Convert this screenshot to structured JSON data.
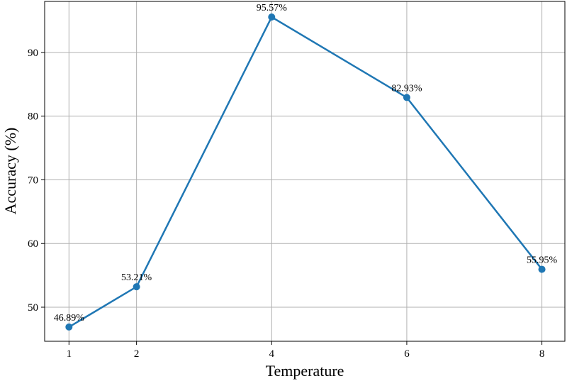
{
  "chart_data": {
    "type": "line",
    "xlabel": "Temperature",
    "ylabel": "Accuracy (%)",
    "x": [
      1,
      2,
      4,
      6,
      8
    ],
    "values": [
      46.89,
      53.21,
      95.57,
      82.93,
      55.95
    ],
    "value_labels": [
      "46.89%",
      "53.21%",
      "95.57%",
      "82.93%",
      "55.95%"
    ],
    "color": "#1f77b4",
    "xlim": [
      0.64,
      8.34
    ],
    "ylim": [
      44.65,
      98.02
    ],
    "xticks": [
      1,
      2,
      4,
      6,
      8
    ],
    "yticks": [
      50,
      60,
      70,
      80,
      90
    ],
    "grid": true
  }
}
